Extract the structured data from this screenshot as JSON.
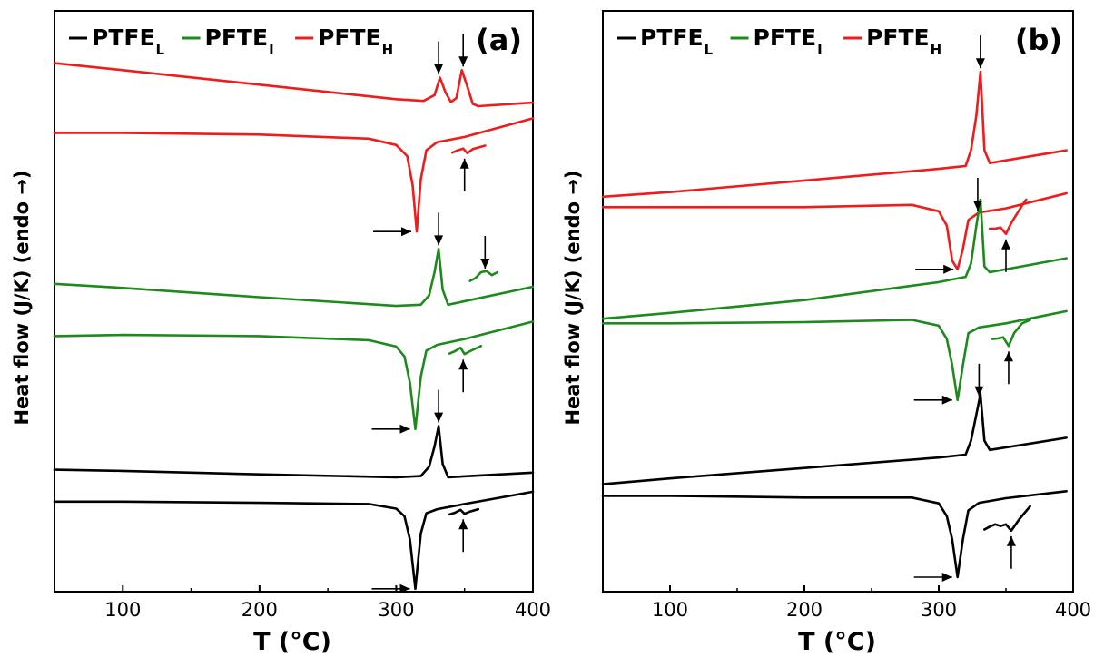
{
  "ylabel": "Heat flow (J/K) (endo →)",
  "xlabel": "T (°C)",
  "legend": [
    {
      "name": "PTFE",
      "sub": "L",
      "color": "#000000"
    },
    {
      "name": "PFTE",
      "sub": "I",
      "color": "#1e8a1e"
    },
    {
      "name": "PFTE",
      "sub": "H",
      "color": "#ee1c1c"
    }
  ],
  "chart_data": [
    {
      "type": "line",
      "panel_label": "(a)",
      "xlim": [
        50,
        400
      ],
      "xticks": [
        100,
        200,
        300,
        400
      ],
      "ylim": [
        0,
        100
      ],
      "grid": false,
      "legend_position": "top",
      "series": [
        {
          "name": "PFTE_H",
          "color": "#ee1c1c",
          "x": [
            50,
            100,
            200,
            300,
            320,
            328,
            332,
            336,
            340,
            344,
            348,
            352,
            356,
            360,
            400
          ],
          "y": [
            91,
            89.8,
            87.3,
            84.8,
            84.5,
            85.5,
            88.5,
            86,
            84.3,
            85,
            89.8,
            87,
            84,
            83.6,
            84.2
          ]
        },
        {
          "name": "PFTE_H",
          "color": "#ee1c1c",
          "x": [
            50,
            100,
            200,
            280,
            300,
            308,
            312,
            315,
            318,
            322,
            330,
            350,
            400
          ],
          "y": [
            79,
            79,
            78.7,
            78,
            76.9,
            75,
            70,
            62,
            71,
            76,
            77.4,
            78.3,
            81.5
          ]
        },
        {
          "name": "PFTE_H",
          "color": "#ee1c1c",
          "x": [
            341,
            345,
            349,
            352,
            356,
            365
          ],
          "y": [
            75.6,
            76,
            76.3,
            75.5,
            76.2,
            76.8
          ]
        },
        {
          "name": "PFTE_I",
          "color": "#1e8a1e",
          "x": [
            50,
            100,
            200,
            300,
            318,
            324,
            328,
            331,
            334,
            338,
            400
          ],
          "y": [
            53,
            52.3,
            50.7,
            49.2,
            49.4,
            51,
            55,
            59,
            52,
            49.4,
            52.5
          ]
        },
        {
          "name": "PFTE_I",
          "color": "#1e8a1e",
          "x": [
            354,
            358,
            362,
            366,
            370,
            374
          ],
          "y": [
            53.5,
            54,
            55,
            55.2,
            54.5,
            55
          ]
        },
        {
          "name": "PFTE_I",
          "color": "#1e8a1e",
          "x": [
            50,
            100,
            200,
            280,
            300,
            306,
            310,
            314,
            318,
            322,
            330,
            350,
            400
          ],
          "y": [
            44,
            44.2,
            44,
            43.3,
            42.2,
            40.5,
            36,
            28,
            37,
            41.5,
            42.5,
            43.5,
            46.5
          ]
        },
        {
          "name": "PFTE_I",
          "color": "#1e8a1e",
          "x": [
            339,
            343,
            347,
            350,
            354,
            362
          ],
          "y": [
            41,
            41.4,
            42,
            40.9,
            41.4,
            42.3
          ]
        },
        {
          "name": "PTFE_L",
          "color": "#000000",
          "x": [
            50,
            100,
            200,
            300,
            318,
            324,
            328,
            331,
            334,
            338,
            400
          ],
          "y": [
            21,
            20.8,
            20.2,
            19.7,
            19.9,
            21.5,
            25,
            28.5,
            22,
            19.7,
            20.5
          ]
        },
        {
          "name": "PTFE_L",
          "color": "#000000",
          "x": [
            50,
            100,
            200,
            280,
            300,
            306,
            310,
            314,
            318,
            322,
            330,
            350,
            400
          ],
          "y": [
            15.5,
            15.5,
            15.3,
            15.1,
            14.3,
            13,
            9,
            0.5,
            10,
            13.5,
            14.2,
            15.1,
            17.2
          ]
        },
        {
          "name": "PTFE_L",
          "color": "#000000",
          "x": [
            339,
            343,
            347,
            350,
            354,
            360
          ],
          "y": [
            13.3,
            13.6,
            14.1,
            13.4,
            13.8,
            14.2
          ]
        }
      ]
    },
    {
      "type": "line",
      "panel_label": "(b)",
      "xlim": [
        50,
        400
      ],
      "xticks": [
        100,
        200,
        300,
        400
      ],
      "ylim": [
        0,
        100
      ],
      "grid": false,
      "legend_position": "top",
      "series": [
        {
          "name": "PFTE_H",
          "color": "#ee1c1c",
          "x": [
            50,
            100,
            200,
            300,
            320,
            324,
            328,
            331,
            334,
            338,
            395
          ],
          "y": [
            68,
            68.8,
            70.8,
            72.8,
            73.3,
            76,
            82,
            89.5,
            76,
            73.8,
            76
          ]
        },
        {
          "name": "PFTE_H",
          "color": "#ee1c1c",
          "x": [
            50,
            100,
            200,
            280,
            300,
            306,
            310,
            314,
            318,
            322,
            330,
            350,
            395
          ],
          "y": [
            66.2,
            66.2,
            66.2,
            66.6,
            65.5,
            63,
            57,
            55.5,
            59,
            64,
            65.3,
            66,
            68.6
          ]
        },
        {
          "name": "PFTE_H",
          "color": "#ee1c1c",
          "x": [
            338,
            342,
            346,
            350,
            354,
            362,
            365
          ],
          "y": [
            62.5,
            62.5,
            62.7,
            61.6,
            63.5,
            66.5,
            67.5
          ]
        },
        {
          "name": "PFTE_I",
          "color": "#1e8a1e",
          "x": [
            50,
            100,
            200,
            300,
            320,
            324,
            328,
            331,
            334,
            338,
            395
          ],
          "y": [
            47,
            48,
            50.2,
            53.3,
            54.2,
            56.5,
            63,
            67.5,
            56,
            55,
            57.4
          ]
        },
        {
          "name": "PFTE_I",
          "color": "#1e8a1e",
          "x": [
            50,
            100,
            200,
            280,
            300,
            306,
            310,
            314,
            318,
            322,
            330,
            350,
            395
          ],
          "y": [
            46.2,
            46.2,
            46.4,
            46.8,
            45.8,
            43.5,
            39,
            33,
            39,
            44.5,
            45.5,
            46.2,
            48.3
          ]
        },
        {
          "name": "PFTE_I",
          "color": "#1e8a1e",
          "x": [
            340,
            344,
            348,
            352,
            356,
            362,
            368
          ],
          "y": [
            43.5,
            43.6,
            43.8,
            42.3,
            44.5,
            46.2,
            46.8
          ]
        },
        {
          "name": "PTFE_L",
          "color": "#000000",
          "x": [
            50,
            100,
            200,
            300,
            320,
            324,
            328,
            331,
            334,
            338,
            395
          ],
          "y": [
            18.5,
            19.5,
            21.3,
            23.1,
            23.6,
            26,
            30.5,
            34,
            26,
            24.4,
            26.5
          ]
        },
        {
          "name": "PTFE_L",
          "color": "#000000",
          "x": [
            50,
            100,
            200,
            280,
            300,
            306,
            310,
            314,
            318,
            322,
            330,
            350,
            395
          ],
          "y": [
            16.5,
            16.5,
            16.2,
            16.2,
            15.2,
            13,
            9,
            2.5,
            9,
            14,
            15.3,
            16.1,
            17.3
          ]
        },
        {
          "name": "PTFE_L",
          "color": "#000000",
          "x": [
            334,
            338,
            342,
            346,
            350,
            354,
            360,
            368
          ],
          "y": [
            10.7,
            11.2,
            11.6,
            11.3,
            11.6,
            10.5,
            12.5,
            14.7
          ]
        }
      ]
    }
  ]
}
